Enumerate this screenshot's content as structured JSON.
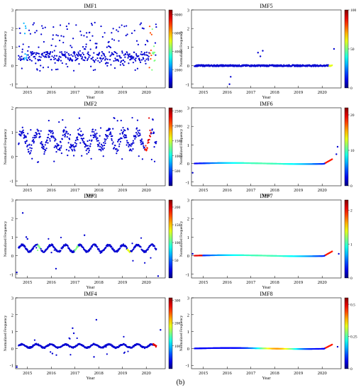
{
  "figure": {
    "caption": "(b)"
  },
  "chart_data": [
    {
      "type": "scatter",
      "title": "IMF1",
      "xlabel": "Year",
      "ylabel": "Normalized Frequency",
      "xlim": [
        2014.5,
        2020.8
      ],
      "ylim": [
        -1.2,
        3.0
      ],
      "yticks": [
        -1,
        0,
        1,
        2,
        3
      ],
      "xticks": [
        2015,
        2016,
        2017,
        2018,
        2019,
        2020
      ],
      "colorbar": {
        "min": 0,
        "max": 8500,
        "ticks": [
          2000,
          4000,
          6000,
          8000
        ]
      },
      "style": "scatter",
      "scatter_fraction": 0.45,
      "base": 0.5,
      "spread": 1.3,
      "noise": 0.25,
      "hot": [
        [
          0.05,
          0.3
        ],
        [
          0.96,
          0.8
        ],
        [
          0.98,
          0.5
        ]
      ]
    },
    {
      "type": "scatter",
      "title": "IMF5",
      "xlabel": "Year",
      "ylabel": "Normalized Frequency",
      "xlim": [
        2014.5,
        2020.8
      ],
      "ylim": [
        -1.2,
        3.0
      ],
      "yticks": [
        -1,
        0,
        1,
        2,
        3
      ],
      "xticks": [
        2015,
        2016,
        2017,
        2018,
        2019,
        2020
      ],
      "colorbar": {
        "min": 0,
        "max": 100,
        "ticks": [
          0,
          50,
          100
        ]
      },
      "style": "flat",
      "base": 0.0,
      "noise": 0.04,
      "outliers": [
        [
          2016.1,
          -1.0
        ],
        [
          2016.15,
          -0.6
        ],
        [
          2017.3,
          0.7
        ],
        [
          2017.5,
          0.8
        ],
        [
          2017.4,
          0.5
        ],
        [
          2020.5,
          0.9
        ]
      ],
      "hot": [
        [
          0.99,
          0.6
        ]
      ]
    },
    {
      "type": "scatter",
      "title": "IMF2",
      "xlabel": "Year",
      "ylabel": "Normalized Frequency",
      "xlim": [
        2014.5,
        2020.8
      ],
      "ylim": [
        -1.2,
        2.0
      ],
      "yticks": [
        -1,
        0,
        1,
        2
      ],
      "xticks": [
        2015,
        2016,
        2017,
        2018,
        2019,
        2020
      ],
      "colorbar": {
        "min": 0,
        "max": 2600,
        "ticks": [
          500,
          1000,
          1500,
          2000,
          2500
        ]
      },
      "style": "wavy",
      "base": 0.65,
      "amp": 0.35,
      "noise": 0.2,
      "scatter_fraction": 0.12,
      "spread": 1.0,
      "hot": [
        [
          0.93,
          0.85
        ],
        [
          0.95,
          0.9
        ]
      ]
    },
    {
      "type": "scatter",
      "title": "IMF6",
      "xlabel": "Year",
      "ylabel": "Normalized Frequency",
      "xlim": [
        2014.5,
        2020.8
      ],
      "ylim": [
        -1.2,
        3.0
      ],
      "yticks": [
        -1,
        0,
        1,
        2,
        3
      ],
      "xticks": [
        2015,
        2016,
        2017,
        2018,
        2019,
        2020
      ],
      "colorbar": {
        "min": 0,
        "max": 22,
        "ticks": [
          0,
          10,
          20
        ]
      },
      "style": "smooth",
      "base": 0.0,
      "noise": 0.0,
      "outliers": [
        [
          2014.55,
          -0.5
        ],
        [
          2020.6,
          0.5
        ],
        [
          2020.65,
          0.9
        ]
      ],
      "gradient": true
    },
    {
      "type": "scatter",
      "title": "IMF3",
      "xlabel": "Year",
      "ylabel": "Normalized Frequency",
      "xlim": [
        2014.5,
        2020.8
      ],
      "ylim": [
        -1.2,
        3.0
      ],
      "yticks": [
        -1,
        0,
        1,
        2,
        3
      ],
      "xticks": [
        2015,
        2016,
        2017,
        2018,
        2019,
        2020
      ],
      "colorbar": {
        "min": 0,
        "max": 220,
        "ticks": [
          50,
          100,
          150,
          200
        ]
      },
      "style": "wavy",
      "base": 0.4,
      "amp": 0.18,
      "noise": 0.05,
      "scatter_fraction": 0.05,
      "spread": 0.8,
      "outliers": [
        [
          2014.8,
          2.3
        ],
        [
          2014.95,
          1.0
        ],
        [
          2015.0,
          0.9
        ],
        [
          2017.4,
          1.1
        ],
        [
          2016.2,
          -0.7
        ],
        [
          2020.5,
          -1.1
        ],
        [
          2014.55,
          -0.9
        ]
      ],
      "hot": [
        [
          0.15,
          0.5
        ],
        [
          0.42,
          0.5
        ],
        [
          0.8,
          0.6
        ]
      ]
    },
    {
      "type": "scatter",
      "title": "IMF7",
      "xlabel": "Year",
      "ylabel": "Normalized Frequency",
      "xlim": [
        2014.5,
        2020.8
      ],
      "ylim": [
        -1.2,
        3.0
      ],
      "yticks": [
        -1,
        0,
        1,
        2,
        3
      ],
      "xticks": [
        2015,
        2016,
        2017,
        2018,
        2019,
        2020
      ],
      "colorbar": {
        "min": 0,
        "max": 2.3,
        "ticks": [
          0,
          1,
          2
        ]
      },
      "style": "smooth",
      "base": 0.0,
      "noise": 0.0,
      "outliers": [
        [
          2014.55,
          0.1
        ],
        [
          2020.7,
          0.1
        ]
      ],
      "gradient": true,
      "gradient_left": true
    },
    {
      "type": "scatter",
      "title": "IMF4",
      "xlabel": "Year",
      "ylabel": "Normalized Frequency",
      "xlim": [
        2014.5,
        2020.8
      ],
      "ylim": [
        -1.2,
        3.0
      ],
      "yticks": [
        -1,
        0,
        1,
        2,
        3
      ],
      "xticks": [
        2015,
        2016,
        2017,
        2018,
        2019,
        2020
      ],
      "colorbar": {
        "min": 0,
        "max": 310,
        "ticks": [
          100,
          200,
          300
        ]
      },
      "style": "wavy",
      "base": 0.15,
      "amp": 0.1,
      "noise": 0.04,
      "scatter_fraction": 0.04,
      "spread": 0.6,
      "outliers": [
        [
          2016.9,
          1.2
        ],
        [
          2016.95,
          0.9
        ],
        [
          2017.9,
          1.7
        ],
        [
          2017.8,
          -0.5
        ],
        [
          2020.6,
          1.1
        ],
        [
          2014.55,
          -1.1
        ],
        [
          2016.05,
          -0.3
        ]
      ],
      "hot": [
        [
          0.99,
          0.9
        ]
      ]
    },
    {
      "type": "scatter",
      "title": "IMF8",
      "xlabel": "Year",
      "ylabel": "Normalized Frequency",
      "xlim": [
        2014.5,
        2020.8
      ],
      "ylim": [
        -1.2,
        3.0
      ],
      "yticks": [
        -1,
        0,
        1,
        2,
        3
      ],
      "xticks": [
        2015,
        2016,
        2017,
        2018,
        2019,
        2020
      ],
      "colorbar": {
        "min": 0,
        "max": 0.55,
        "ticks": [
          0,
          0.25,
          0.5
        ]
      },
      "style": "smooth",
      "base": 0.0,
      "noise": 0.0,
      "outliers": [
        [
          2020.65,
          0.1
        ]
      ],
      "gradient": true,
      "gradient_mid": true
    }
  ]
}
